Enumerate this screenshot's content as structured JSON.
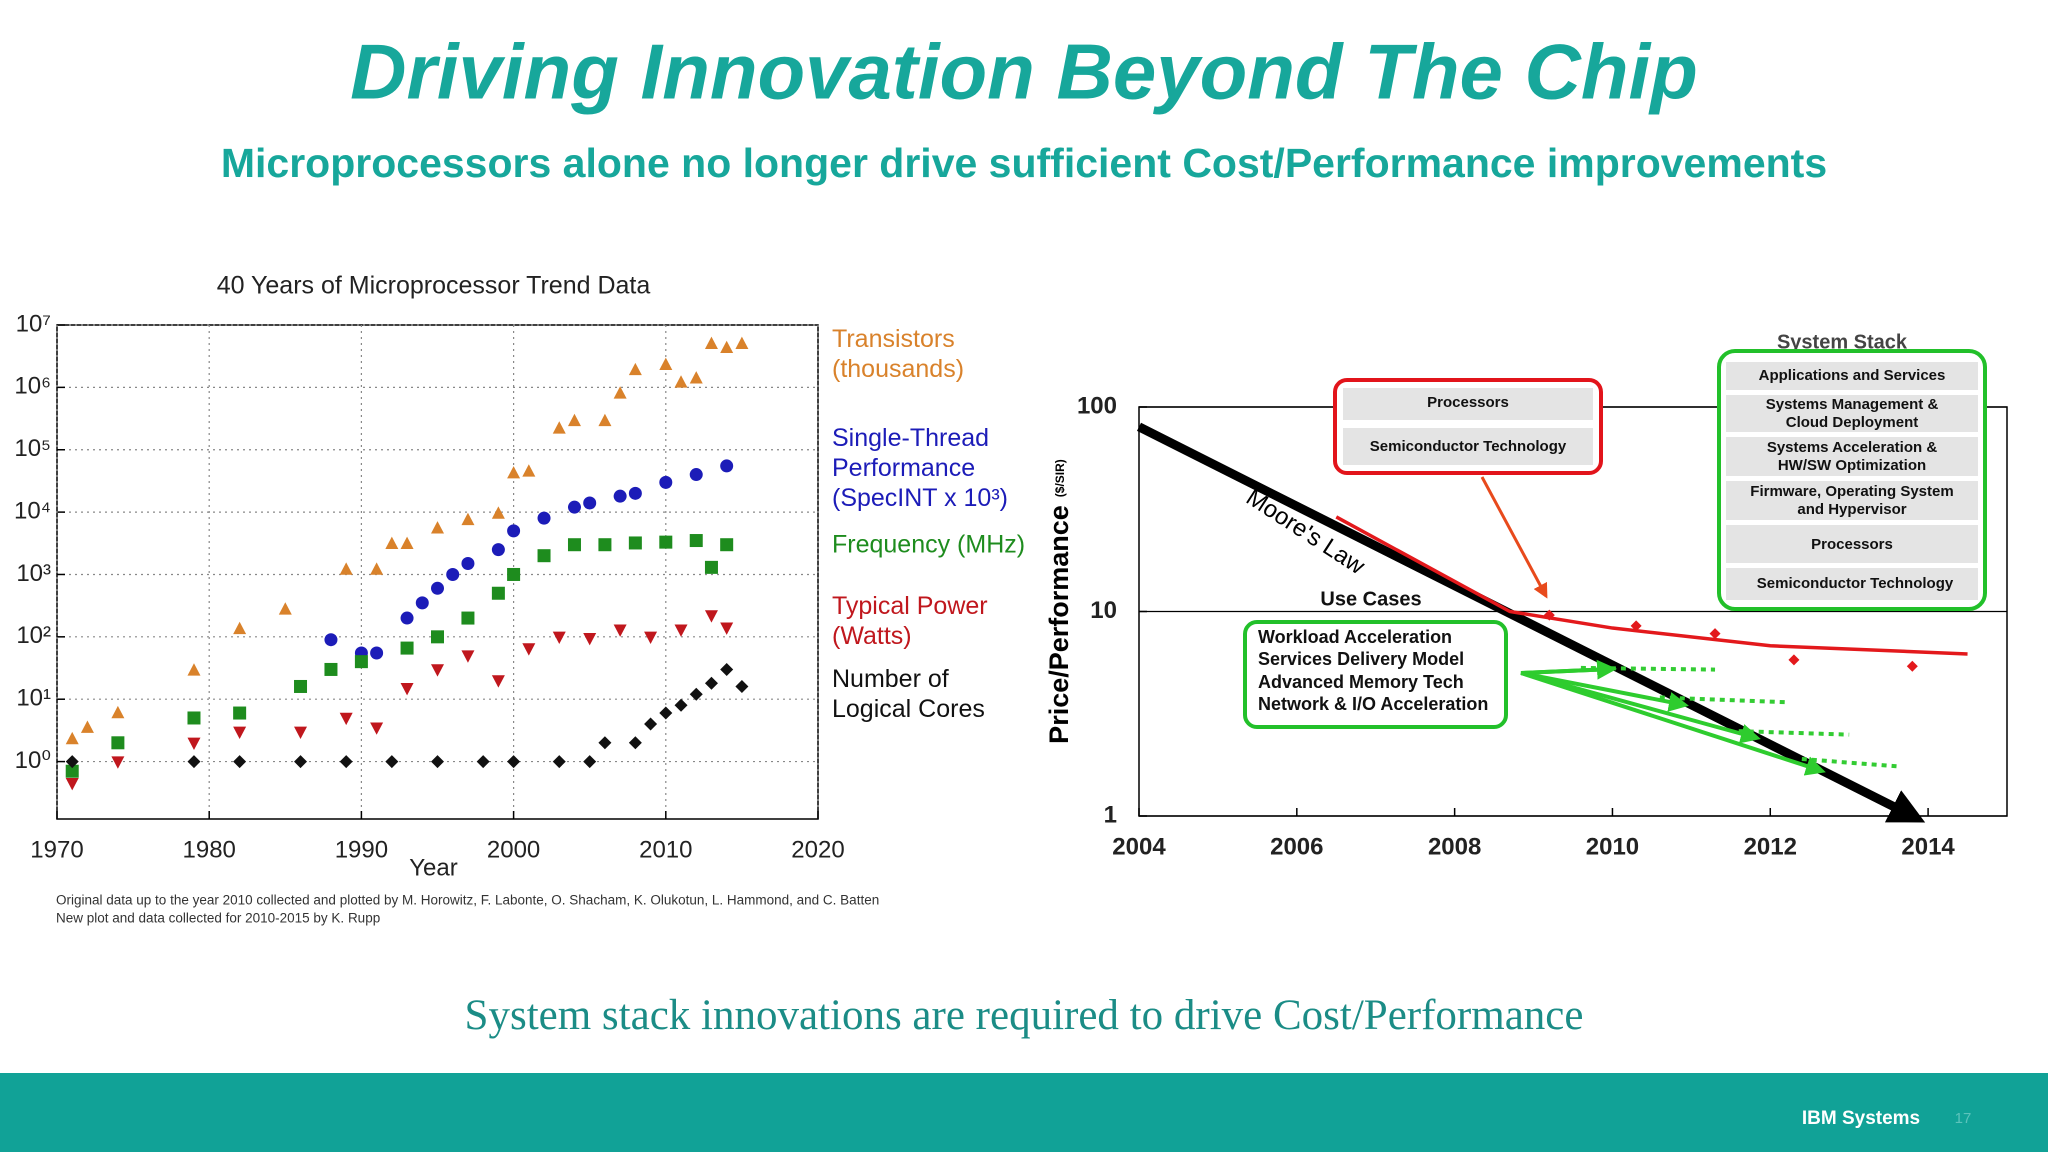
{
  "slide": {
    "title": "Driving Innovation Beyond The Chip",
    "subtitle": "Microprocessors alone no longer drive sufficient Cost/Performance improvements",
    "tagline": "System stack innovations are required to drive Cost/Performance",
    "brand": "IBM Systems",
    "page_number": 17
  },
  "chart_data": [
    {
      "type": "scatter",
      "title": "40 Years of Microprocessor Trend Data",
      "xlabel": "Year",
      "notes": [
        "Original data up to the year 2010 collected and plotted by M. Horowitz, F. Labonte, O. Shacham, K. Olukotun, L. Hammond, and C. Batten",
        "New plot and data collected for 2010-2015 by K. Rupp"
      ],
      "log_y": true,
      "grid": true,
      "legend": "right",
      "xlim": [
        1970,
        2020
      ],
      "xticks": [
        1970,
        1980,
        1990,
        2000,
        2010,
        2020
      ],
      "ylim": [
        0.12,
        10000000
      ],
      "yticks": [
        {
          "value": 1,
          "label": "10⁰"
        },
        {
          "value": 10,
          "label": "10¹"
        },
        {
          "value": 100,
          "label": "10²"
        },
        {
          "value": 1000,
          "label": "10³"
        },
        {
          "value": 10000,
          "label": "10⁴"
        },
        {
          "value": 100000,
          "label": "10⁵"
        },
        {
          "value": 1000000,
          "label": "10⁶"
        },
        {
          "value": 10000000,
          "label": "10⁷"
        }
      ],
      "series": [
        {
          "name": "Transistors\n(thousands)",
          "color": "#d9822b",
          "marker": "triangle-up",
          "x": [
            1971,
            1972,
            1974,
            1979,
            1982,
            1985,
            1989,
            1991,
            1992,
            1993,
            1995,
            1997,
            1999,
            2000,
            2001,
            2003,
            2004,
            2006,
            2007,
            2008,
            2010,
            2011,
            2012,
            2013,
            2014,
            2015
          ],
          "values": [
            2.3,
            3.5,
            6,
            29,
            134,
            275,
            1200,
            1200,
            3100,
            3100,
            5500,
            7500,
            9500,
            42000,
            45000,
            220000,
            290000,
            290000,
            800000,
            1900000,
            2300000,
            1200000,
            1400000,
            5000000,
            4300000,
            5000000
          ]
        },
        {
          "name": "Single-Thread\nPerformance\n(SpecINT x 10³)",
          "color": "#1c1cb8",
          "marker": "circle",
          "x": [
            1988,
            1990,
            1991,
            1993,
            1994,
            1995,
            1996,
            1997,
            1999,
            2000,
            2002,
            2004,
            2005,
            2007,
            2008,
            2010,
            2012,
            2014
          ],
          "values": [
            90,
            55,
            55,
            200,
            350,
            600,
            1000,
            1500,
            2500,
            5000,
            8000,
            12000,
            14000,
            18000,
            20000,
            30000,
            40000,
            55000
          ]
        },
        {
          "name": "Frequency (MHz)",
          "color": "#1e8c1e",
          "marker": "square",
          "x": [
            1971,
            1974,
            1979,
            1982,
            1986,
            1988,
            1990,
            1993,
            1995,
            1997,
            1999,
            2000,
            2002,
            2004,
            2006,
            2008,
            2010,
            2012,
            2013,
            2014
          ],
          "values": [
            0.7,
            2,
            5,
            6,
            16,
            30,
            40,
            66,
            100,
            200,
            500,
            1000,
            2000,
            3000,
            3000,
            3200,
            3300,
            3500,
            1300,
            3000
          ]
        },
        {
          "name": "Typical Power\n(Watts)",
          "color": "#c0171d",
          "marker": "triangle-down",
          "x": [
            1971,
            1974,
            1979,
            1982,
            1986,
            1989,
            1991,
            1993,
            1995,
            1997,
            1999,
            2001,
            2003,
            2005,
            2007,
            2009,
            2011,
            2013,
            2014
          ],
          "values": [
            0.45,
            1,
            2,
            3,
            3,
            5,
            3.5,
            15,
            30,
            50,
            20,
            65,
            100,
            95,
            130,
            100,
            130,
            220,
            140
          ]
        },
        {
          "name": "Number of\nLogical Cores",
          "color": "#111111",
          "marker": "diamond",
          "x": [
            1971,
            1979,
            1982,
            1986,
            1989,
            1992,
            1995,
            1998,
            2000,
            2003,
            2005,
            2006,
            2008,
            2009,
            2010,
            2011,
            2012,
            2013,
            2014,
            2015
          ],
          "values": [
            1,
            1,
            1,
            1,
            1,
            1,
            1,
            1,
            1,
            1,
            1,
            2,
            2,
            4,
            6,
            8,
            12,
            18,
            30,
            16
          ]
        }
      ]
    },
    {
      "type": "line",
      "ylabel": "Price/Performance",
      "ylabel_unit": "($/SIR)",
      "log_y": true,
      "grid": "y",
      "xlim": [
        2004,
        2015
      ],
      "xticks": [
        2004,
        2006,
        2008,
        2010,
        2012,
        2014
      ],
      "ylim": [
        1,
        100
      ],
      "yticks": [
        1,
        10,
        100
      ],
      "series": [
        {
          "name": "Moore's Law",
          "color": "#000000",
          "style": "arrow",
          "x": [
            2004,
            2013.8
          ],
          "values": [
            80,
            1
          ]
        },
        {
          "color": "#e3191c",
          "x": [
            2006.5,
            2008.7,
            2010,
            2012,
            2014.5
          ],
          "values": [
            29,
            10,
            8.3,
            6.8,
            6.2
          ]
        },
        {
          "color": "#e3191c",
          "marker": "diamond",
          "x": [
            2009.2,
            2010.3,
            2011.3,
            2012.3,
            2013.8
          ],
          "values": [
            9.6,
            8.5,
            7.8,
            5.8,
            5.4
          ]
        },
        {
          "color": "#33cc33",
          "style": "dotted",
          "x": [
            2009.6,
            2011.3
          ],
          "values": [
            5.3,
            5.2
          ]
        },
        {
          "color": "#33cc33",
          "style": "dotted",
          "x": [
            2010.6,
            2012.2
          ],
          "values": [
            3.8,
            3.6
          ]
        },
        {
          "color": "#33cc33",
          "style": "dotted",
          "x": [
            2011.6,
            2013
          ],
          "values": [
            2.6,
            2.5
          ]
        },
        {
          "color": "#33cc33",
          "style": "dotted",
          "x": [
            2012.4,
            2013.6
          ],
          "values": [
            1.9,
            1.75
          ]
        }
      ],
      "annotations": {
        "processor_layers": [
          "Processors",
          "Semiconductor Technology"
        ],
        "system_stack_title": "System Stack",
        "system_stack": [
          "Applications and Services",
          "Systems Management &\nCloud Deployment",
          "Systems Acceleration &\nHW/SW Optimization",
          "Firmware, Operating System\nand Hypervisor",
          "Processors",
          "Semiconductor Technology"
        ],
        "use_cases_title": "Use Cases",
        "use_cases": [
          "Workload Acceleration",
          "Services Delivery Model",
          "Advanced Memory Tech",
          "Network & I/O Acceleration"
        ]
      }
    }
  ]
}
